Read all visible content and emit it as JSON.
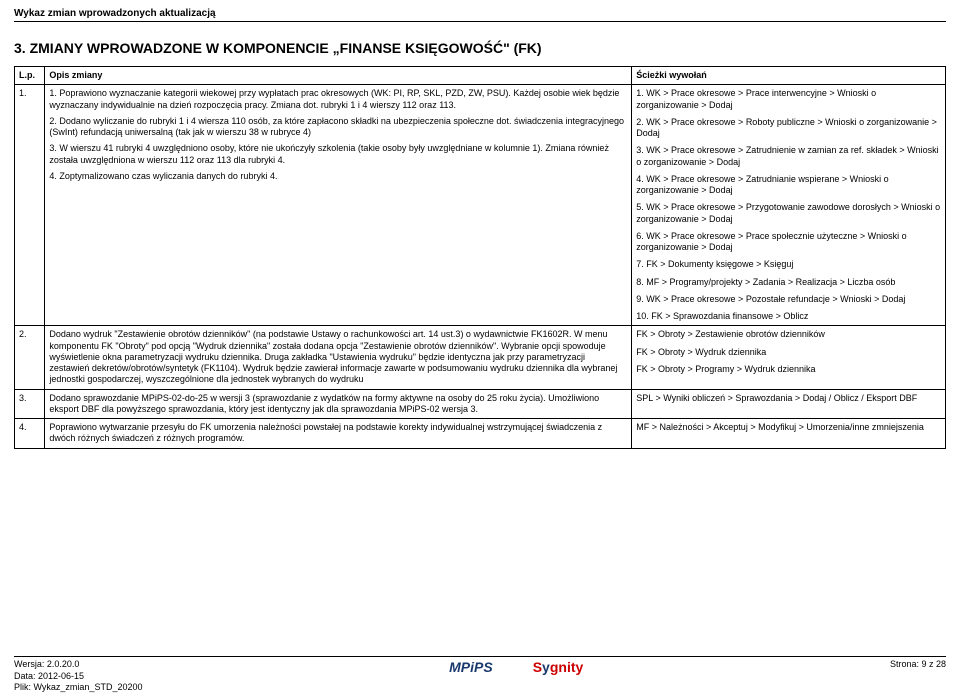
{
  "header": "Wykaz zmian wprowadzonych aktualizacją",
  "section_title_num": "3.",
  "section_title_a": "Z",
  "section_title_b": "MIANY WPROWADZONE W KOMPONENCIE",
  "section_title_c": "„F",
  "section_title_d": "INANSE",
  "section_title_e": "K",
  "section_title_f": "SIĘGOWOŚĆ",
  "section_title_g": "\" (FK)",
  "table": {
    "headers": {
      "lp": "L.p.",
      "opis": "Opis zmiany",
      "sciezki": "Ścieżki wywołań"
    },
    "rows": [
      {
        "lp": "1.",
        "opis": [
          "1. Poprawiono wyznaczanie kategorii wiekowej przy wypłatach prac okresowych (WK: PI, RP, SKL, PZD, ZW, PSU). Każdej osobie wiek będzie wyznaczany indywidualnie na dzień rozpoczęcia pracy. Zmiana dot. rubryki 1 i 4 wierszy 112 oraz 113.",
          "2. Dodano wyliczanie do rubryki 1 i 4 wiersza 110 osób, za które zapłacono składki na ubezpieczenia społeczne dot. świadczenia integracyjnego (SwInt) refundacją uniwersalną (tak jak w wierszu 38 w rubryce 4)",
          "3. W wierszu 41 rubryki 4 uwzględniono osoby, które nie ukończyły szkolenia (takie osoby były uwzględniane w kolumnie 1). Zmiana również została uwzględniona w wierszu 112 oraz 113 dla rubryki 4.",
          "4. Zoptymalizowano czas wyliczania danych do rubryki 4."
        ],
        "sciezki": [
          "1. WK > Prace okresowe > Prace interwencyjne > Wnioski o zorganizowanie > Dodaj",
          "2. WK > Prace okresowe > Roboty publiczne > Wnioski o zorganizowanie > Dodaj",
          "3. WK > Prace okresowe > Zatrudnienie w zamian za ref. składek > Wnioski o zorganizowanie > Dodaj",
          "4. WK > Prace okresowe > Zatrudnianie wspierane > Wnioski o zorganizowanie > Dodaj",
          "5. WK > Prace okresowe > Przygotowanie zawodowe dorosłych  > Wnioski o zorganizowanie > Dodaj",
          "6. WK > Prace okresowe > Prace społecznie użyteczne > Wnioski o zorganizowanie > Dodaj",
          "7. FK > Dokumenty księgowe > Księguj",
          "8. MF > Programy/projekty > Zadania > Realizacja > Liczba osób",
          "9. WK > Prace okresowe > Pozostałe refundacje > Wnioski > Dodaj",
          "10. FK > Sprawozdania finansowe > Oblicz"
        ]
      },
      {
        "lp": "2.",
        "opis": [
          "Dodano wydruk \"Zestawienie obrotów dzienników\" (na podstawie Ustawy o rachunkowości art. 14 ust.3) o wydawnictwie FK1602R. W menu komponentu FK \"Obroty\" pod opcją \"Wydruk dziennika\" została dodana opcja \"Zestawienie obrotów dzienników\". Wybranie opcji spowoduje wyświetlenie okna parametryzacji wydruku dziennika. Druga zakładka \"Ustawienia wydruku\" będzie identyczna jak przy parametryzacji zestawień dekretów/obrotów/syntetyk (FK1104). Wydruk będzie zawierał informacje zawarte w podsumowaniu wydruku dziennika dla wybranej jednostki gospodarczej, wyszczególnione dla jednostek wybranych do wydruku"
        ],
        "sciezki": [
          "FK > Obroty > Zestawienie obrotów dzienników",
          "FK > Obroty > Wydruk dziennika",
          "FK > Obroty > Programy > Wydruk dziennika"
        ]
      },
      {
        "lp": "3.",
        "opis": [
          "Dodano sprawozdanie MPiPS-02-do-25 w wersji 3 (sprawozdanie z wydatków na formy aktywne na osoby do 25 roku życia). Umożliwiono eksport DBF dla powyższego sprawozdania, który jest identyczny jak dla sprawozdania MPiPS-02 wersja 3."
        ],
        "sciezki": [
          "SPL > Wyniki obliczeń > Sprawozdania > Dodaj / Oblicz / Eksport DBF"
        ]
      },
      {
        "lp": "4.",
        "opis": [
          "Poprawiono wytwarzanie przesyłu do FK umorzenia należności powstałej na podstawie korekty indywidualnej wstrzymującej świadczenia z dwóch różnych świadczeń z różnych programów."
        ],
        "sciezki": [
          "MF > Należności > Akceptuj > Modyfikuj > Umorzenia/inne zmniejszenia"
        ]
      }
    ]
  },
  "footer": {
    "wersja": "Wersja: 2.0.20.0",
    "data": "Data: 2012-06-15",
    "plik": "Plik: Wykaz_zmian_STD_20200",
    "logo1": "MPiPS",
    "logo2_s": "S",
    "logo2_y": "y",
    "logo2_rest": "gnity",
    "strona": "Strona: 9 z 28"
  }
}
